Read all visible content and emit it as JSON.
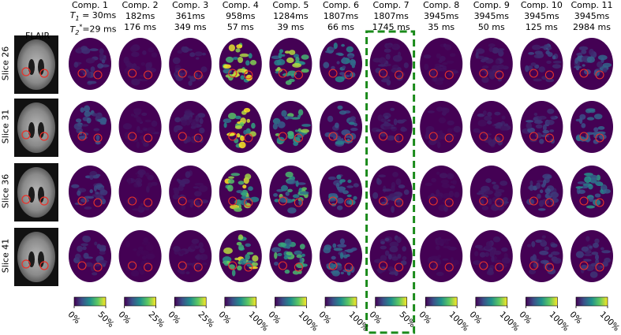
{
  "flair_label": "FLAIR",
  "slice_labels": [
    "Slice 26",
    "Slice 31",
    "Slice 36",
    "Slice 41"
  ],
  "t1_prefix": "T",
  "t1_sub": "1",
  "t1_value": " = 30ms",
  "t2_prefix": "T",
  "t2_sub": "2",
  "t2_sup": "*",
  "t2_value": "=29 ms",
  "components": [
    {
      "title": "Comp. 1",
      "t1": "",
      "t2": "",
      "cb_min": "0%",
      "cb_max": "50%"
    },
    {
      "title": "Comp. 2",
      "t1": "182ms",
      "t2": "176 ms",
      "cb_min": "0%",
      "cb_max": "25%"
    },
    {
      "title": "Comp. 3",
      "t1": "361ms",
      "t2": "349 ms",
      "cb_min": "0%",
      "cb_max": "25%"
    },
    {
      "title": "Comp. 4",
      "t1": "958ms",
      "t2": "57 ms",
      "cb_min": "0%",
      "cb_max": "100%"
    },
    {
      "title": "Comp. 5",
      "t1": "1284ms",
      "t2": "39 ms",
      "cb_min": "0%",
      "cb_max": "100%"
    },
    {
      "title": "Comp. 6",
      "t1": "1807ms",
      "t2": "66 ms",
      "cb_min": "0%",
      "cb_max": "100%"
    },
    {
      "title": "Comp. 7",
      "t1": "1807ms",
      "t2": "1745 ms",
      "cb_min": "0%",
      "cb_max": "50%"
    },
    {
      "title": "Comp. 8",
      "t1": "3945ms",
      "t2": "35 ms",
      "cb_min": "0%",
      "cb_max": "100%"
    },
    {
      "title": "Comp. 9",
      "t1": "3945ms",
      "t2": "50 ms",
      "cb_min": "0%",
      "cb_max": "100%"
    },
    {
      "title": "Comp. 10",
      "t1": "3945ms",
      "t2": "125 ms",
      "cb_min": "0%",
      "cb_max": "100%"
    },
    {
      "title": "Comp. 11",
      "t1": "3945ms",
      "t2": "2984 ms",
      "cb_min": "0%",
      "cb_max": "100%"
    }
  ],
  "highlighted_component": 7,
  "colors": {
    "background_map": "#440154",
    "colormap": [
      "#440154",
      "#3b528b",
      "#21918c",
      "#5ec962",
      "#fde725"
    ],
    "roi_circle": "#e8322a",
    "highlight_box": "#1a8a1a"
  },
  "intensity_levels": [
    [
      0.15,
      0.05,
      0.1,
      0.85,
      0.7,
      0.35,
      0.1,
      0.05,
      0.1,
      0.2,
      0.25
    ],
    [
      0.25,
      0.05,
      0.1,
      0.85,
      0.65,
      0.35,
      0.1,
      0.05,
      0.1,
      0.2,
      0.3
    ],
    [
      0.2,
      0.05,
      0.08,
      0.8,
      0.6,
      0.35,
      0.12,
      0.05,
      0.1,
      0.2,
      0.45
    ],
    [
      0.15,
      0.02,
      0.05,
      0.85,
      0.55,
      0.35,
      0.12,
      0.04,
      0.08,
      0.15,
      0.15
    ]
  ]
}
